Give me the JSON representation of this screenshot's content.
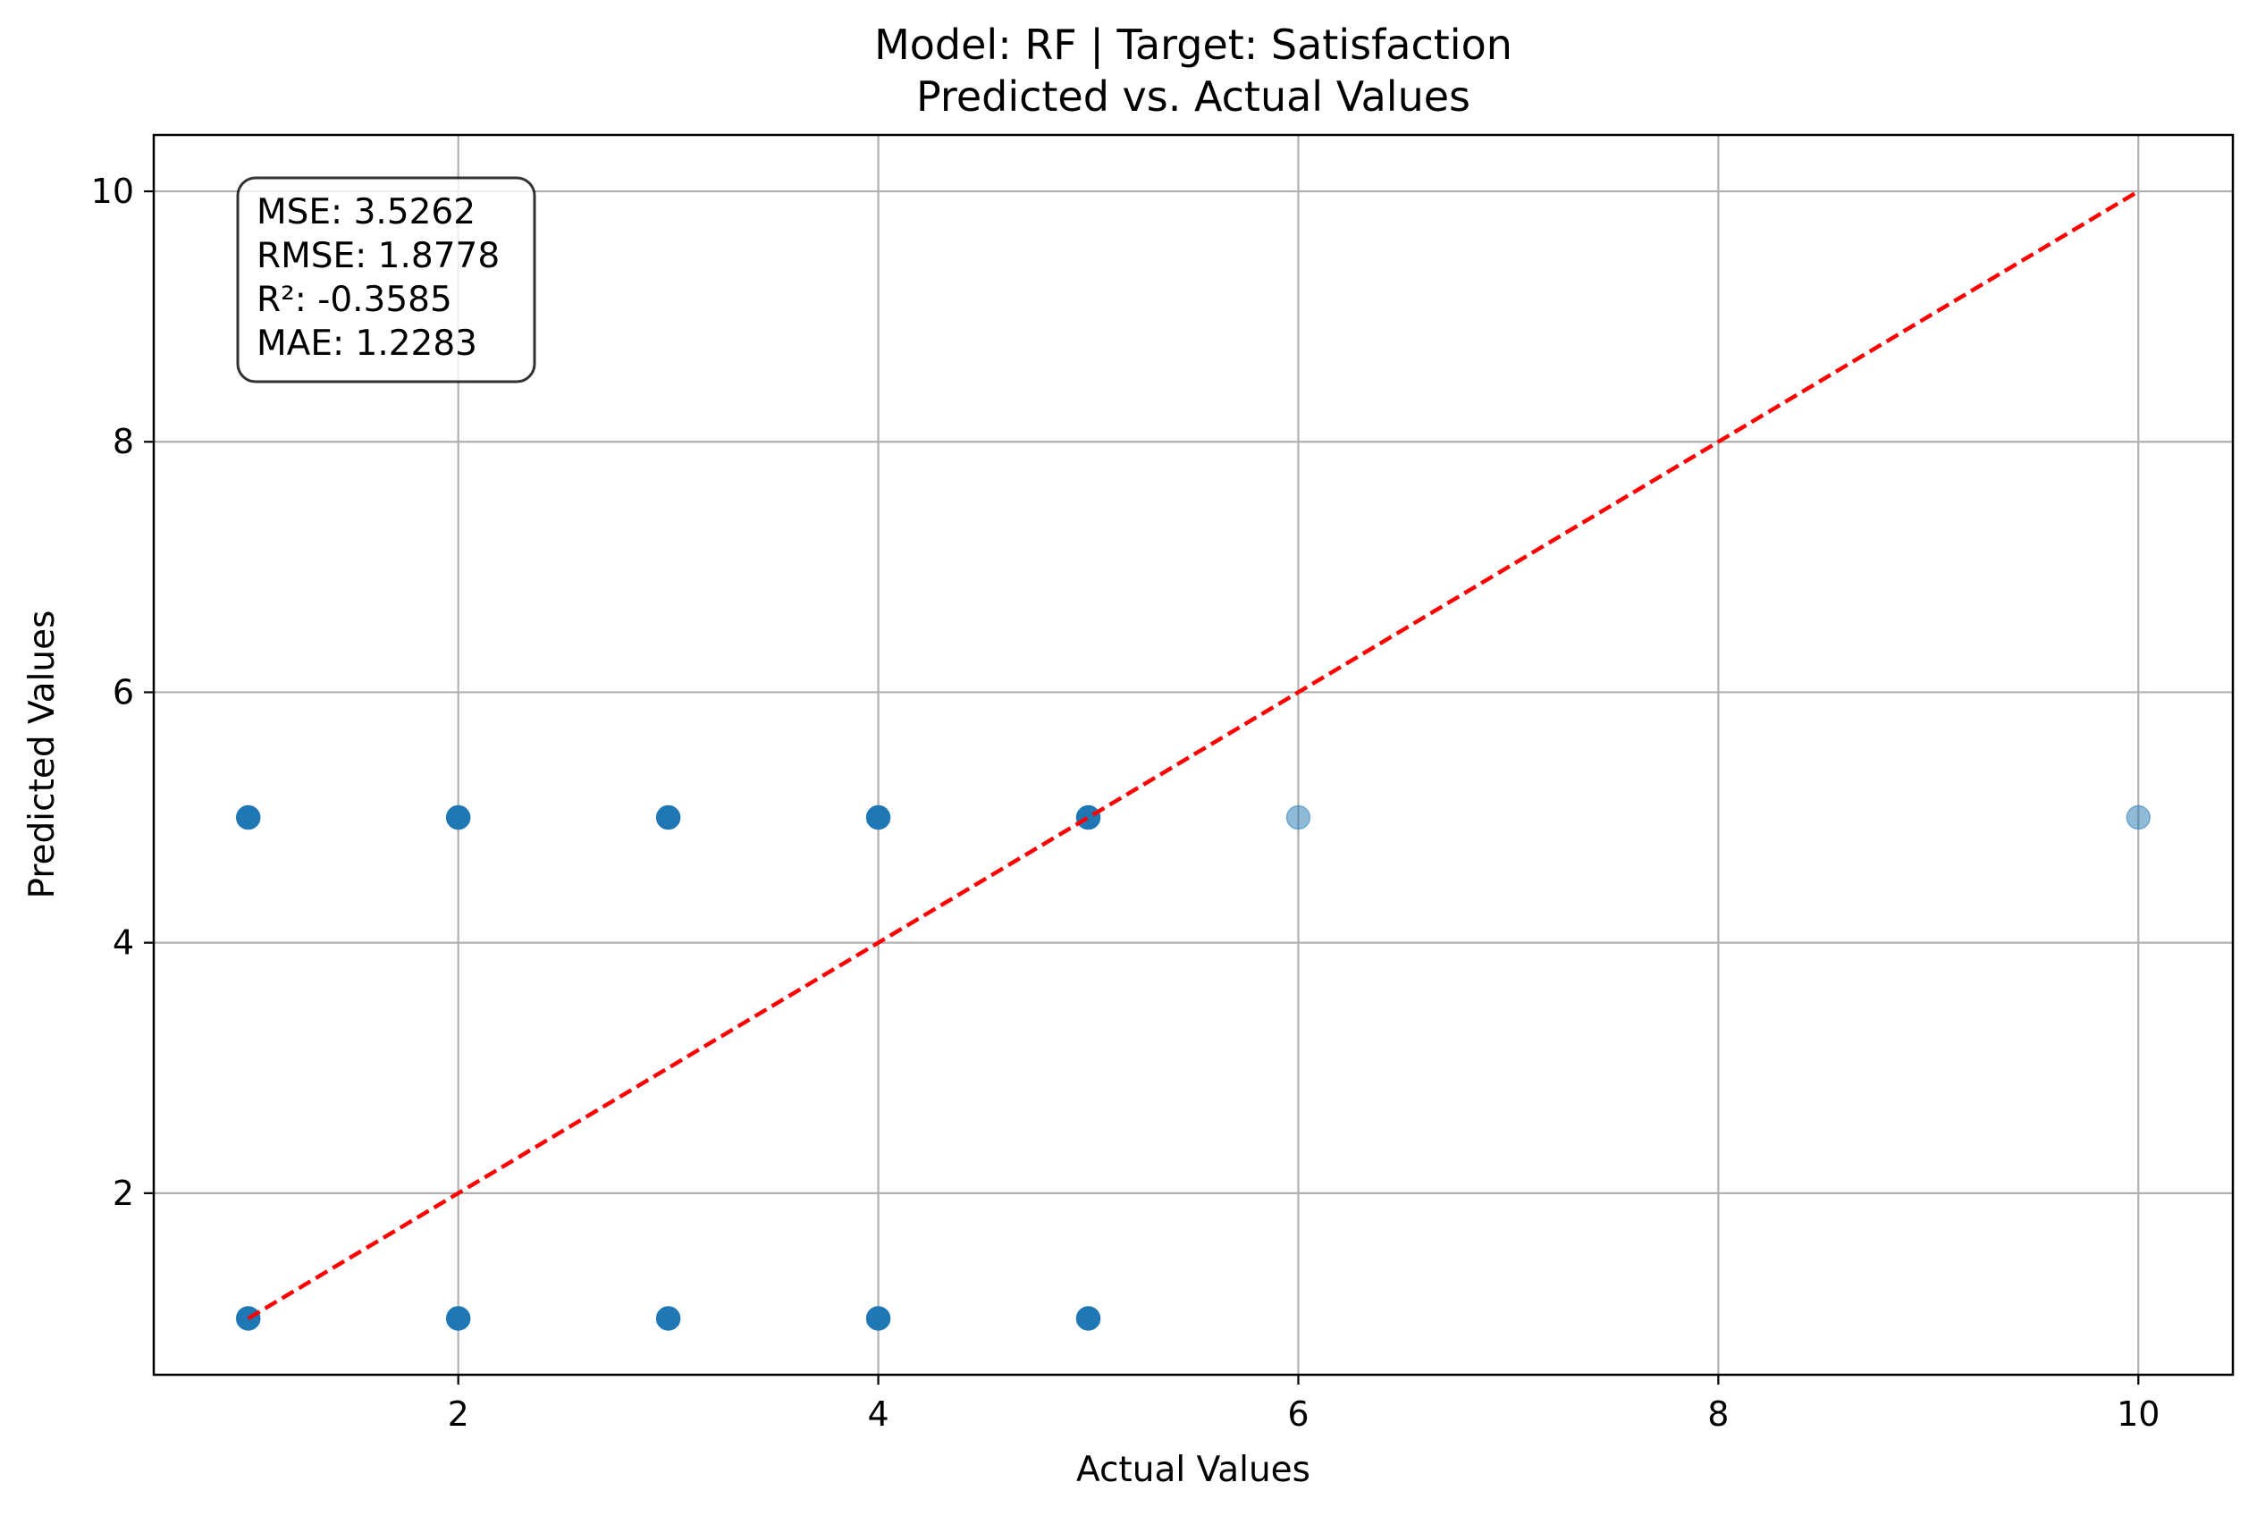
{
  "chart_data": {
    "type": "scatter",
    "title": "Model: RF | Target: Satisfaction",
    "subtitle": "Predicted vs. Actual Values",
    "xlabel": "Actual Values",
    "ylabel": "Predicted Values",
    "xlim": [
      0.55,
      10.45
    ],
    "ylim": [
      0.55,
      10.45
    ],
    "x_ticks": [
      2,
      4,
      6,
      8,
      10
    ],
    "y_ticks": [
      2,
      4,
      6,
      8,
      10
    ],
    "x_tick_labels": [
      "2",
      "4",
      "6",
      "8",
      "10"
    ],
    "y_tick_labels": [
      "2",
      "4",
      "6",
      "8",
      "10"
    ],
    "grid": true,
    "series": [
      {
        "color": "#1f77b4",
        "points": [
          {
            "x": 1,
            "y": 5,
            "opacity": 1.0
          },
          {
            "x": 2,
            "y": 5,
            "opacity": 1.0
          },
          {
            "x": 3,
            "y": 5,
            "opacity": 1.0
          },
          {
            "x": 4,
            "y": 5,
            "opacity": 1.0
          },
          {
            "x": 5,
            "y": 5,
            "opacity": 1.0
          },
          {
            "x": 6,
            "y": 5,
            "opacity": 0.5
          },
          {
            "x": 10,
            "y": 5,
            "opacity": 0.5
          },
          {
            "x": 1,
            "y": 1,
            "opacity": 1.0
          },
          {
            "x": 2,
            "y": 1,
            "opacity": 1.0
          },
          {
            "x": 3,
            "y": 1,
            "opacity": 1.0
          },
          {
            "x": 4,
            "y": 1,
            "opacity": 1.0
          },
          {
            "x": 5,
            "y": 1,
            "opacity": 1.0
          }
        ]
      }
    ],
    "reference_line": {
      "style": "dashed",
      "color": "#ff0000",
      "from": [
        1,
        1
      ],
      "to": [
        10,
        10
      ]
    },
    "metrics_box": {
      "lines": [
        "MSE: 3.5262",
        "RMSE: 1.8778",
        "R²: -0.3585",
        "MAE: 1.2283"
      ],
      "placement": "top-left"
    }
  }
}
